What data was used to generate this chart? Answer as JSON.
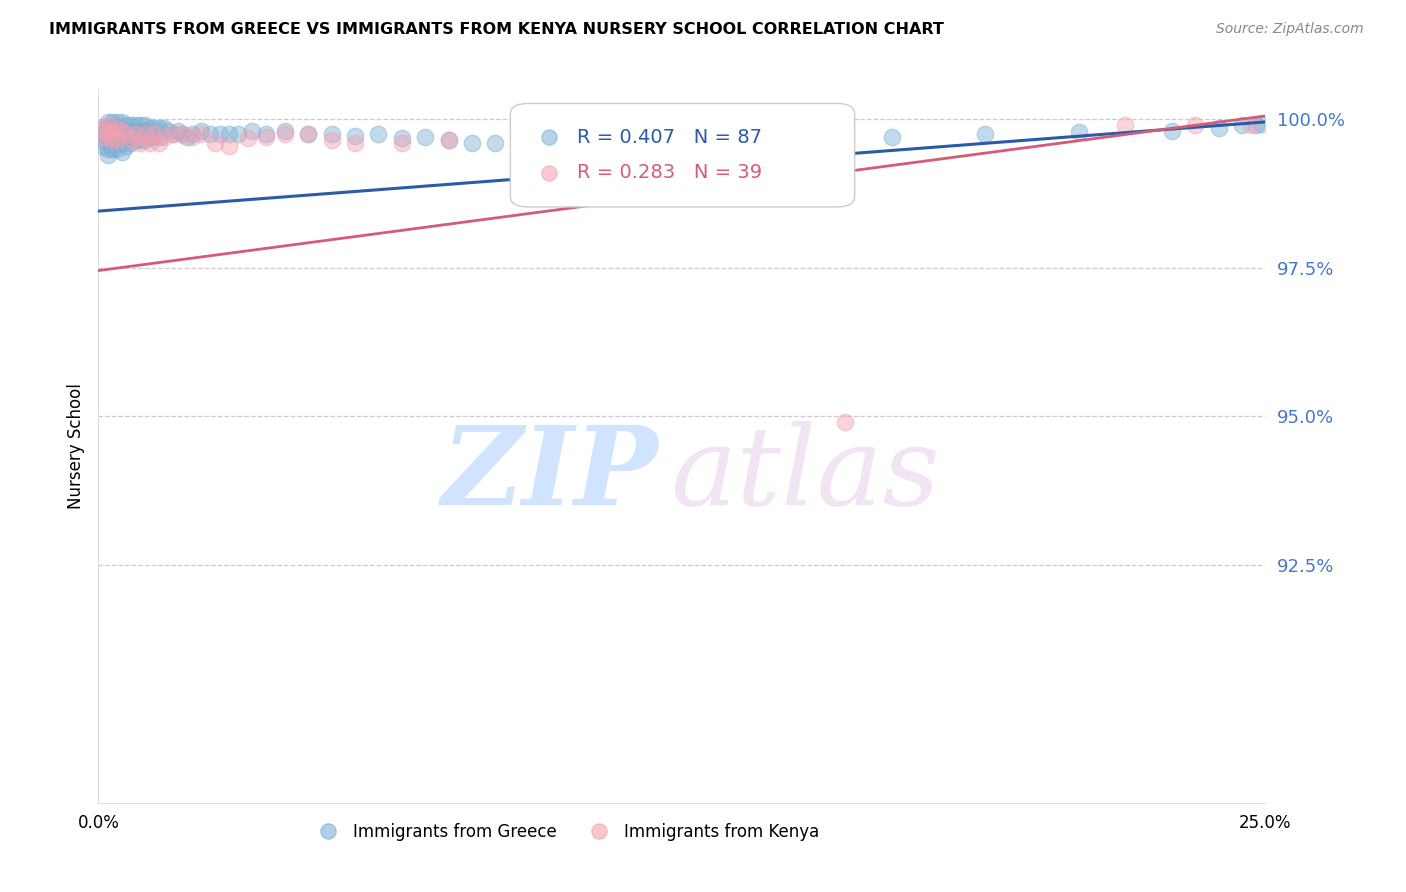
{
  "title": "IMMIGRANTS FROM GREECE VS IMMIGRANTS FROM KENYA NURSERY SCHOOL CORRELATION CHART",
  "source": "Source: ZipAtlas.com",
  "ylabel": "Nursery School",
  "legend_blue_label": "Immigrants from Greece",
  "legend_pink_label": "Immigrants from Kenya",
  "blue_R": "0.407",
  "blue_N": "87",
  "pink_R": "0.283",
  "pink_N": "39",
  "blue_color": "#7BAFD4",
  "pink_color": "#F4A0B0",
  "blue_line_color": "#2B5BA8",
  "pink_line_color": "#D45C78",
  "background_color": "#FFFFFF",
  "ytick_color": "#4477CC",
  "xlim": [
    0.0,
    0.25
  ],
  "ylim": [
    0.885,
    1.005
  ],
  "yticks": [
    0.925,
    0.95,
    0.975,
    1.0
  ],
  "ytick_labels": [
    "92.5%",
    "95.0%",
    "97.5%",
    "100.0%"
  ],
  "blue_trend_x": [
    0.0,
    0.25
  ],
  "blue_trend_y": [
    0.9845,
    0.9995
  ],
  "pink_trend_x": [
    0.0,
    0.25
  ],
  "pink_trend_y": [
    0.9745,
    1.0005
  ],
  "blue_x": [
    0.001,
    0.001,
    0.001,
    0.001,
    0.002,
    0.002,
    0.002,
    0.002,
    0.002,
    0.002,
    0.003,
    0.003,
    0.003,
    0.003,
    0.003,
    0.004,
    0.004,
    0.004,
    0.004,
    0.004,
    0.005,
    0.005,
    0.005,
    0.005,
    0.005,
    0.006,
    0.006,
    0.006,
    0.006,
    0.007,
    0.007,
    0.007,
    0.007,
    0.008,
    0.008,
    0.008,
    0.009,
    0.009,
    0.009,
    0.01,
    0.01,
    0.01,
    0.011,
    0.011,
    0.012,
    0.012,
    0.013,
    0.013,
    0.014,
    0.015,
    0.016,
    0.017,
    0.018,
    0.019,
    0.02,
    0.022,
    0.024,
    0.026,
    0.028,
    0.03,
    0.033,
    0.036,
    0.04,
    0.045,
    0.05,
    0.055,
    0.06,
    0.065,
    0.07,
    0.075,
    0.08,
    0.085,
    0.09,
    0.1,
    0.11,
    0.12,
    0.13,
    0.14,
    0.15,
    0.17,
    0.19,
    0.21,
    0.23,
    0.24,
    0.245,
    0.248,
    0.249
  ],
  "blue_y": [
    0.9985,
    0.9975,
    0.9965,
    0.9955,
    0.9995,
    0.9985,
    0.9975,
    0.9965,
    0.995,
    0.994,
    0.9995,
    0.9985,
    0.9975,
    0.9965,
    0.995,
    0.9995,
    0.9985,
    0.9975,
    0.9965,
    0.995,
    0.9995,
    0.9985,
    0.9975,
    0.996,
    0.9945,
    0.999,
    0.998,
    0.997,
    0.9955,
    0.999,
    0.998,
    0.997,
    0.996,
    0.999,
    0.998,
    0.9965,
    0.999,
    0.998,
    0.9965,
    0.999,
    0.998,
    0.9965,
    0.9985,
    0.997,
    0.9985,
    0.997,
    0.9985,
    0.997,
    0.9985,
    0.998,
    0.9975,
    0.998,
    0.9975,
    0.997,
    0.9975,
    0.998,
    0.9975,
    0.9975,
    0.9975,
    0.9975,
    0.998,
    0.9975,
    0.998,
    0.9975,
    0.9975,
    0.9972,
    0.9975,
    0.9968,
    0.997,
    0.9965,
    0.996,
    0.996,
    0.9965,
    0.997,
    0.997,
    0.9965,
    0.9968,
    0.9965,
    0.996,
    0.997,
    0.9975,
    0.9978,
    0.998,
    0.9985,
    0.999,
    0.999,
    0.9992
  ],
  "pink_x": [
    0.001,
    0.001,
    0.002,
    0.002,
    0.003,
    0.003,
    0.004,
    0.004,
    0.005,
    0.006,
    0.007,
    0.008,
    0.009,
    0.01,
    0.011,
    0.012,
    0.013,
    0.014,
    0.016,
    0.018,
    0.02,
    0.022,
    0.025,
    0.028,
    0.032,
    0.036,
    0.04,
    0.045,
    0.05,
    0.055,
    0.065,
    0.075,
    0.09,
    0.11,
    0.13,
    0.16,
    0.22,
    0.235,
    0.247
  ],
  "pink_y": [
    0.9985,
    0.997,
    0.999,
    0.9975,
    0.998,
    0.9965,
    0.9985,
    0.9965,
    0.998,
    0.9975,
    0.9965,
    0.9975,
    0.996,
    0.9975,
    0.996,
    0.9975,
    0.996,
    0.997,
    0.9975,
    0.9975,
    0.997,
    0.9975,
    0.996,
    0.9955,
    0.9968,
    0.997,
    0.9975,
    0.9975,
    0.9965,
    0.996,
    0.996,
    0.9965,
    0.996,
    0.9935,
    0.994,
    0.949,
    0.999,
    0.999,
    0.999
  ]
}
